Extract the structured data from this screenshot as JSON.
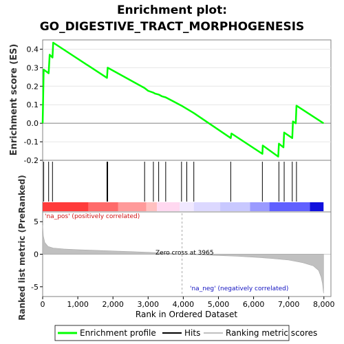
{
  "chart_data": {
    "type": "line",
    "title": "Enrichment plot:",
    "subtitle": "GO_DIGESTIVE_TRACT_MORPHOGENESIS",
    "xlabel": "Rank in Ordered Dataset",
    "es_ylabel": "Enrichment score (ES)",
    "metric_ylabel": "Ranked list metric (PreRanked)",
    "xlim": [
      0,
      8200
    ],
    "es_ylim": [
      -0.2,
      0.45
    ],
    "metric_ylim": [
      -6.5,
      6.5
    ],
    "x_ticks": [
      0,
      1000,
      2000,
      3000,
      4000,
      5000,
      6000,
      7000,
      8000
    ],
    "x_tick_labels": [
      "0",
      "1,000",
      "2,000",
      "3,000",
      "4,000",
      "5,000",
      "6,000",
      "7,000",
      "8,000"
    ],
    "es_ticks": [
      -0.2,
      -0.1,
      0.0,
      0.1,
      0.2,
      0.3,
      0.4
    ],
    "es_tick_labels": [
      "-0.2",
      "-0.1",
      "0.0",
      "0.1",
      "0.2",
      "0.3",
      "0.4"
    ],
    "metric_ticks": [
      -5,
      0,
      5
    ],
    "metric_tick_labels": [
      "-5",
      "0",
      "5"
    ],
    "enrichment_profile": {
      "x": [
        0,
        30,
        170,
        200,
        280,
        300,
        1830,
        1850,
        2900,
        3000,
        3150,
        3200,
        3300,
        3400,
        3500,
        3950,
        4300,
        5350,
        5370,
        6250,
        6260,
        6700,
        6720,
        6850,
        6870,
        7100,
        7120,
        7200,
        7220,
        7990
      ],
      "y": [
        0.0,
        0.29,
        0.27,
        0.37,
        0.355,
        0.435,
        0.245,
        0.3,
        0.19,
        0.175,
        0.165,
        0.16,
        0.155,
        0.145,
        0.14,
        0.095,
        0.055,
        -0.08,
        -0.055,
        -0.165,
        -0.12,
        -0.18,
        -0.11,
        -0.13,
        -0.05,
        -0.08,
        0.01,
        0.0,
        0.095,
        0.0
      ]
    },
    "hits": [
      30,
      170,
      280,
      1830,
      1850,
      2900,
      3150,
      3300,
      3500,
      3950,
      4100,
      4300,
      5350,
      6250,
      6720,
      6870,
      7100,
      7220
    ],
    "zero_cross": 3965,
    "zero_cross_label": "Zero cross at 3965",
    "pos_label": "'na_pos' (positively correlated)",
    "neg_label": "'na_neg' (negatively correlated)",
    "heat_segments": [
      {
        "from": 0,
        "to": 1300,
        "color": "#ff3b3b"
      },
      {
        "from": 1300,
        "to": 2150,
        "color": "#ff6a6a"
      },
      {
        "from": 2150,
        "to": 2950,
        "color": "#ff9a9a"
      },
      {
        "from": 2950,
        "to": 3250,
        "color": "#ffc0c0"
      },
      {
        "from": 3250,
        "to": 3900,
        "color": "#ffd8f0"
      },
      {
        "from": 3900,
        "to": 4300,
        "color": "#f0e8ff"
      },
      {
        "from": 4300,
        "to": 5050,
        "color": "#dcd8ff"
      },
      {
        "from": 5050,
        "to": 5900,
        "color": "#c8c8ff"
      },
      {
        "from": 5900,
        "to": 6450,
        "color": "#9a9aff"
      },
      {
        "from": 6450,
        "to": 7600,
        "color": "#6060ff"
      },
      {
        "from": 7600,
        "to": 7990,
        "color": "#1010dd"
      }
    ],
    "metric_profile": {
      "x": [
        0,
        20,
        60,
        150,
        300,
        600,
        1000,
        1500,
        2000,
        2500,
        3000,
        3500,
        3965,
        4500,
        5000,
        5500,
        6000,
        6500,
        7000,
        7400,
        7700,
        7850,
        7920,
        7960,
        7990
      ],
      "y": [
        4.5,
        2.8,
        1.8,
        1.2,
        0.95,
        0.8,
        0.7,
        0.6,
        0.5,
        0.4,
        0.3,
        0.15,
        0.0,
        -0.1,
        -0.2,
        -0.3,
        -0.45,
        -0.65,
        -0.9,
        -1.3,
        -1.8,
        -2.5,
        -3.5,
        -4.5,
        -6.0
      ]
    },
    "legend": [
      {
        "label": "Enrichment profile",
        "color": "#00ff00"
      },
      {
        "label": "Hits",
        "color": "#000000"
      },
      {
        "label": "Ranking metric scores",
        "color": "#c0c0c0"
      }
    ]
  }
}
